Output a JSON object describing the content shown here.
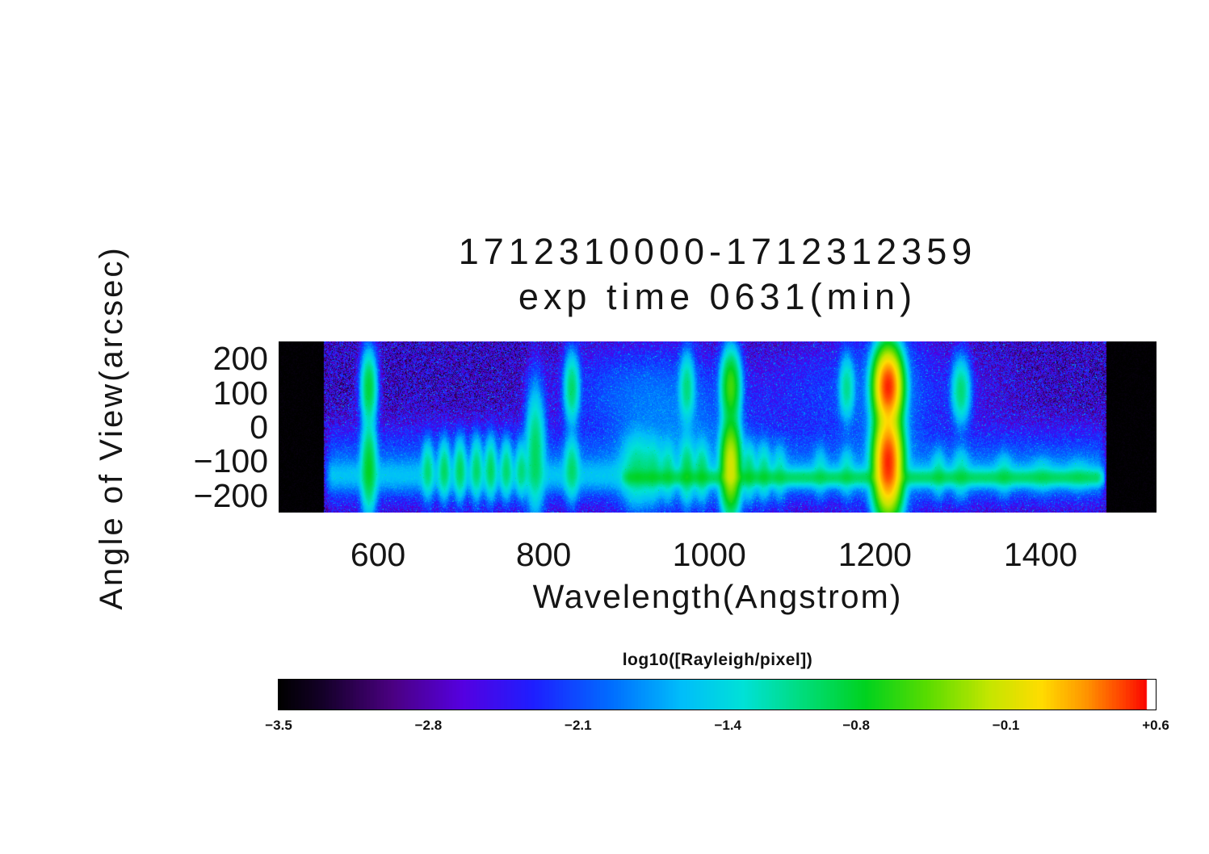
{
  "chart_data": {
    "type": "heatmap",
    "title_line1": "1712310000-1712312359",
    "title_line2": "exp time 0631(min)",
    "xlabel": "Wavelength(Angstrom)",
    "ylabel": "Angle of View(arcsec)",
    "x_range": [
      480,
      1540
    ],
    "y_range": [
      -250,
      250
    ],
    "x_ticks": [
      {
        "value": 600,
        "label": "600"
      },
      {
        "value": 800,
        "label": "800"
      },
      {
        "value": 1000,
        "label": "1000"
      },
      {
        "value": 1200,
        "label": "1200"
      },
      {
        "value": 1400,
        "label": "1400"
      }
    ],
    "y_ticks": [
      {
        "value": 200,
        "label": "200"
      },
      {
        "value": 100,
        "label": "100"
      },
      {
        "value": 0,
        "label": "0"
      },
      {
        "value": -100,
        "label": "−100"
      },
      {
        "value": -200,
        "label": "−200"
      }
    ],
    "colorbar": {
      "label": "log10([Rayleigh/pixel])",
      "min": -3.5,
      "max": 0.6,
      "ticks": [
        {
          "value": -3.5,
          "label": "−3.5"
        },
        {
          "value": -2.8,
          "label": "−2.8"
        },
        {
          "value": -2.1,
          "label": "−2.1"
        },
        {
          "value": -1.4,
          "label": "−1.4"
        },
        {
          "value": -0.8,
          "label": "−0.8"
        },
        {
          "value": -0.1,
          "label": "−0.1"
        },
        {
          "value": 0.6,
          "label": "+0.6"
        }
      ]
    },
    "colormap_stops": [
      [
        0.0,
        0,
        0,
        0
      ],
      [
        0.05,
        20,
        0,
        40
      ],
      [
        0.13,
        75,
        0,
        130
      ],
      [
        0.21,
        85,
        0,
        225
      ],
      [
        0.29,
        30,
        30,
        255
      ],
      [
        0.38,
        0,
        110,
        255
      ],
      [
        0.46,
        0,
        190,
        250
      ],
      [
        0.53,
        0,
        225,
        215
      ],
      [
        0.6,
        0,
        220,
        120
      ],
      [
        0.67,
        0,
        210,
        30
      ],
      [
        0.74,
        90,
        220,
        0
      ],
      [
        0.81,
        195,
        230,
        0
      ],
      [
        0.87,
        255,
        220,
        0
      ],
      [
        0.92,
        255,
        150,
        0
      ],
      [
        0.965,
        255,
        60,
        0
      ],
      [
        0.99,
        250,
        5,
        0
      ],
      [
        0.992,
        255,
        255,
        255
      ],
      [
        1.0,
        255,
        255,
        255
      ]
    ],
    "data_region": {
      "lambda_min": 535,
      "lambda_max": 1480
    },
    "background": {
      "log_base": -3.32,
      "log_spread": 1.28,
      "speckle_prob": 0.02,
      "speckle_boost": 0.85
    },
    "band_components": [
      {
        "center": -143,
        "sigma_y": 27,
        "log_peak": -1.78,
        "lambda_min": 535,
        "lambda_max": 1480
      },
      {
        "center": -148,
        "sigma_y": 13,
        "log_peak": -1.12,
        "lambda_min": 893,
        "lambda_max": 1478
      },
      {
        "center": -118,
        "sigma_y": 62,
        "log_peak": -2.12,
        "lambda_min": 535,
        "lambda_max": 1480
      }
    ],
    "features": [
      {
        "wavelength": 589,
        "sigma_x": 5,
        "segments": [
          {
            "center": 115,
            "sigma_y": 55,
            "log_peak": -0.85
          },
          {
            "center": -118,
            "sigma_y": 70,
            "log_peak": -0.82
          }
        ]
      },
      {
        "wavelength": 660,
        "sigma_x": 4,
        "segments": [
          {
            "center": -125,
            "sigma_y": 45,
            "log_peak": -1.15
          }
        ]
      },
      {
        "wavelength": 680,
        "sigma_x": 4,
        "segments": [
          {
            "center": -124,
            "sigma_y": 46,
            "log_peak": -1.08
          }
        ]
      },
      {
        "wavelength": 699,
        "sigma_x": 4,
        "segments": [
          {
            "center": -122,
            "sigma_y": 47,
            "log_peak": -1.05
          }
        ]
      },
      {
        "wavelength": 719,
        "sigma_x": 4,
        "segments": [
          {
            "center": -120,
            "sigma_y": 48,
            "log_peak": -1.1
          }
        ]
      },
      {
        "wavelength": 736,
        "sigma_x": 4,
        "segments": [
          {
            "center": -120,
            "sigma_y": 48,
            "log_peak": -1.06
          }
        ]
      },
      {
        "wavelength": 755,
        "sigma_x": 4,
        "segments": [
          {
            "center": -122,
            "sigma_y": 46,
            "log_peak": -1.12
          }
        ]
      },
      {
        "wavelength": 773,
        "sigma_x": 4,
        "segments": [
          {
            "center": -124,
            "sigma_y": 44,
            "log_peak": -1.18
          }
        ]
      },
      {
        "wavelength": 790,
        "sigma_x": 6,
        "segments": [
          {
            "center": -70,
            "sigma_y": 95,
            "log_peak": -1.0
          }
        ]
      },
      {
        "wavelength": 834,
        "sigma_x": 5,
        "segments": [
          {
            "center": 113,
            "sigma_y": 54,
            "log_peak": -1.02
          },
          {
            "center": -120,
            "sigma_y": 50,
            "log_peak": -1.1
          }
        ]
      },
      {
        "wavelength": 913,
        "sigma_x": 11,
        "segments": [
          {
            "center": -125,
            "sigma_y": 58,
            "log_peak": -1.18
          }
        ]
      },
      {
        "wavelength": 920,
        "sigma_x": 55,
        "segments": [
          {
            "center": 100,
            "sigma_y": 75,
            "log_peak": -2.15
          }
        ]
      },
      {
        "wavelength": 933,
        "sigma_x": 6,
        "segments": [
          {
            "center": -126,
            "sigma_y": 50,
            "log_peak": -1.3
          }
        ]
      },
      {
        "wavelength": 950,
        "sigma_x": 5,
        "segments": [
          {
            "center": -128,
            "sigma_y": 46,
            "log_peak": -1.25
          }
        ]
      },
      {
        "wavelength": 965,
        "sigma_x": 50,
        "segments": [
          {
            "center": -50,
            "sigma_y": 110,
            "log_peak": -2.05
          }
        ]
      },
      {
        "wavelength": 973,
        "sigma_x": 5,
        "segments": [
          {
            "center": 115,
            "sigma_y": 54,
            "log_peak": -1.1
          },
          {
            "center": -126,
            "sigma_y": 50,
            "log_peak": -1.05
          }
        ]
      },
      {
        "wavelength": 991,
        "sigma_x": 5,
        "segments": [
          {
            "center": -128,
            "sigma_y": 45,
            "log_peak": -1.12
          }
        ]
      },
      {
        "wavelength": 1026,
        "sigma_x": 6,
        "segments": [
          {
            "center": 117,
            "sigma_y": 54,
            "log_peak": -0.55
          },
          {
            "center": -112,
            "sigma_y": 66,
            "log_peak": -0.12
          }
        ]
      },
      {
        "wavelength": 1048,
        "sigma_x": 5,
        "segments": [
          {
            "center": -128,
            "sigma_y": 45,
            "log_peak": -1.15
          }
        ]
      },
      {
        "wavelength": 1066,
        "sigma_x": 5,
        "segments": [
          {
            "center": -128,
            "sigma_y": 45,
            "log_peak": -1.22
          }
        ]
      },
      {
        "wavelength": 1085,
        "sigma_x": 5,
        "segments": [
          {
            "center": -130,
            "sigma_y": 44,
            "log_peak": -1.4
          }
        ]
      },
      {
        "wavelength": 1134,
        "sigma_x": 5,
        "segments": [
          {
            "center": -130,
            "sigma_y": 40,
            "log_peak": -1.5
          }
        ]
      },
      {
        "wavelength": 1166,
        "sigma_x": 5,
        "segments": [
          {
            "center": 114,
            "sigma_y": 50,
            "log_peak": -1.15
          },
          {
            "center": -130,
            "sigma_y": 40,
            "log_peak": -1.42
          }
        ]
      },
      {
        "wavelength": 1190,
        "sigma_x": 75,
        "segments": [
          {
            "center": 95,
            "sigma_y": 85,
            "log_peak": -2.3
          }
        ]
      },
      {
        "wavelength": 1216,
        "sigma_x": 8,
        "segments": [
          {
            "center": 118,
            "sigma_y": 52,
            "log_peak": 0.5
          },
          {
            "center": -103,
            "sigma_y": 70,
            "log_peak": 0.5
          }
        ]
      },
      {
        "wavelength": 1216,
        "sigma_x": 22,
        "segments": [
          {
            "center": 20,
            "sigma_y": 240,
            "log_peak": -2.05
          }
        ]
      },
      {
        "wavelength": 1277,
        "sigma_x": 5,
        "segments": [
          {
            "center": -134,
            "sigma_y": 38,
            "log_peak": -1.35
          }
        ]
      },
      {
        "wavelength": 1304,
        "sigma_x": 6,
        "segments": [
          {
            "center": 105,
            "sigma_y": 50,
            "log_peak": -1.05
          },
          {
            "center": -134,
            "sigma_y": 40,
            "log_peak": -1.35
          }
        ]
      },
      {
        "wavelength": 1356,
        "sigma_x": 6,
        "segments": [
          {
            "center": -137,
            "sigma_y": 34,
            "log_peak": -1.42
          }
        ]
      },
      {
        "wavelength": 1402,
        "sigma_x": 8,
        "segments": [
          {
            "center": -140,
            "sigma_y": 30,
            "log_peak": -1.6
          }
        ]
      },
      {
        "wavelength": 1446,
        "sigma_x": 8,
        "segments": [
          {
            "center": -141,
            "sigma_y": 28,
            "log_peak": -1.68
          }
        ]
      }
    ]
  }
}
